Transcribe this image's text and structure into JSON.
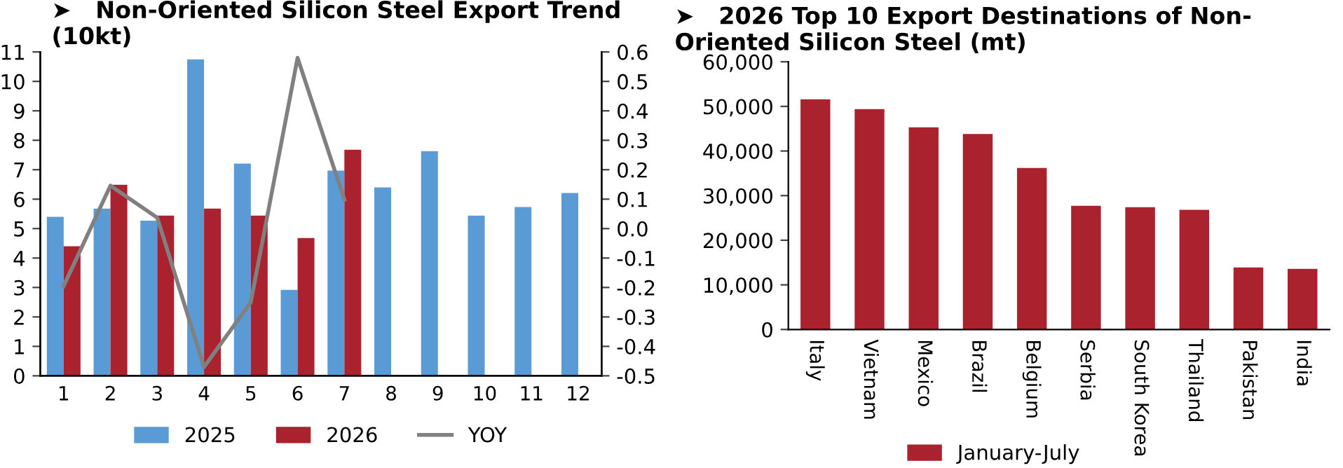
{
  "chart_data": [
    {
      "type": "bar",
      "title": "➤   Non-Oriented Silicon Steel Export Trend\n(10kt)",
      "categories": [
        "1",
        "2",
        "3",
        "4",
        "5",
        "6",
        "7",
        "8",
        "9",
        "10",
        "11",
        "12"
      ],
      "series": [
        {
          "name": "2025",
          "type": "bar",
          "color": "#5b9bd5",
          "values": [
            5.4,
            5.68,
            5.27,
            10.75,
            7.21,
            2.92,
            6.97,
            6.4,
            7.63,
            5.44,
            5.73,
            6.21
          ]
        },
        {
          "name": "2026",
          "type": "bar",
          "color": "#a9222e",
          "values": [
            4.4,
            6.49,
            5.44,
            5.68,
            5.44,
            4.68,
            7.68,
            null,
            null,
            null,
            null,
            null
          ]
        },
        {
          "name": "YOY",
          "type": "line",
          "axis": "y2",
          "color": "#808080",
          "values": [
            -0.195,
            0.146,
            0.037,
            -0.47,
            -0.25,
            0.58,
            0.098,
            null,
            null,
            null,
            null,
            null
          ]
        }
      ],
      "ylim": [
        0,
        11
      ],
      "yticks": [
        0,
        1,
        2,
        3,
        4,
        5,
        6,
        7,
        8,
        9,
        10,
        11
      ],
      "y2lim": [
        -0.5,
        0.6
      ],
      "y2ticks": [
        {
          "value": -0.5,
          "label": "-0.5"
        },
        {
          "value": -0.4,
          "label": "-0.4"
        },
        {
          "value": -0.3,
          "label": "-0.3"
        },
        {
          "value": -0.2,
          "label": "-0.2"
        },
        {
          "value": -0.1,
          "label": "-0.1"
        },
        {
          "value": 0,
          "label": "0.0"
        },
        {
          "value": 0.1,
          "label": "0.1"
        },
        {
          "value": 0.2,
          "label": "0.2"
        },
        {
          "value": 0.3,
          "label": "0.3"
        },
        {
          "value": 0.4,
          "label": "0.4"
        },
        {
          "value": 0.5,
          "label": "0.5"
        },
        {
          "value": 0.6,
          "label": "0.6"
        }
      ],
      "grid": false,
      "legend": "bottom",
      "marker": "none",
      "line_style": "solid"
    },
    {
      "type": "bar",
      "title": "➤   2026 Top 10 Export Destinations of Non-\nOriented Silicon Steel (mt)",
      "categories": [
        "Italy",
        "Vietnam",
        "Mexico",
        "Brazil",
        "Belgium",
        "Serbia",
        "South Korea",
        "Thailand",
        "Pakistan",
        "India"
      ],
      "series": [
        {
          "name": "January-July",
          "color": "#a9222e",
          "values": [
            51600,
            49400,
            45300,
            43800,
            36200,
            27700,
            27400,
            26800,
            13900,
            13600
          ]
        }
      ],
      "ylim": [
        0,
        60000
      ],
      "yticks": [
        {
          "value": 0,
          "label": "0"
        },
        {
          "value": 10000,
          "label": "10,000"
        },
        {
          "value": 20000,
          "label": "20,000"
        },
        {
          "value": 30000,
          "label": "30,000"
        },
        {
          "value": 40000,
          "label": "40,000"
        },
        {
          "value": 50000,
          "label": "50,000"
        },
        {
          "value": 60000,
          "label": "60,000"
        }
      ],
      "grid": false,
      "legend": "bottom"
    }
  ]
}
